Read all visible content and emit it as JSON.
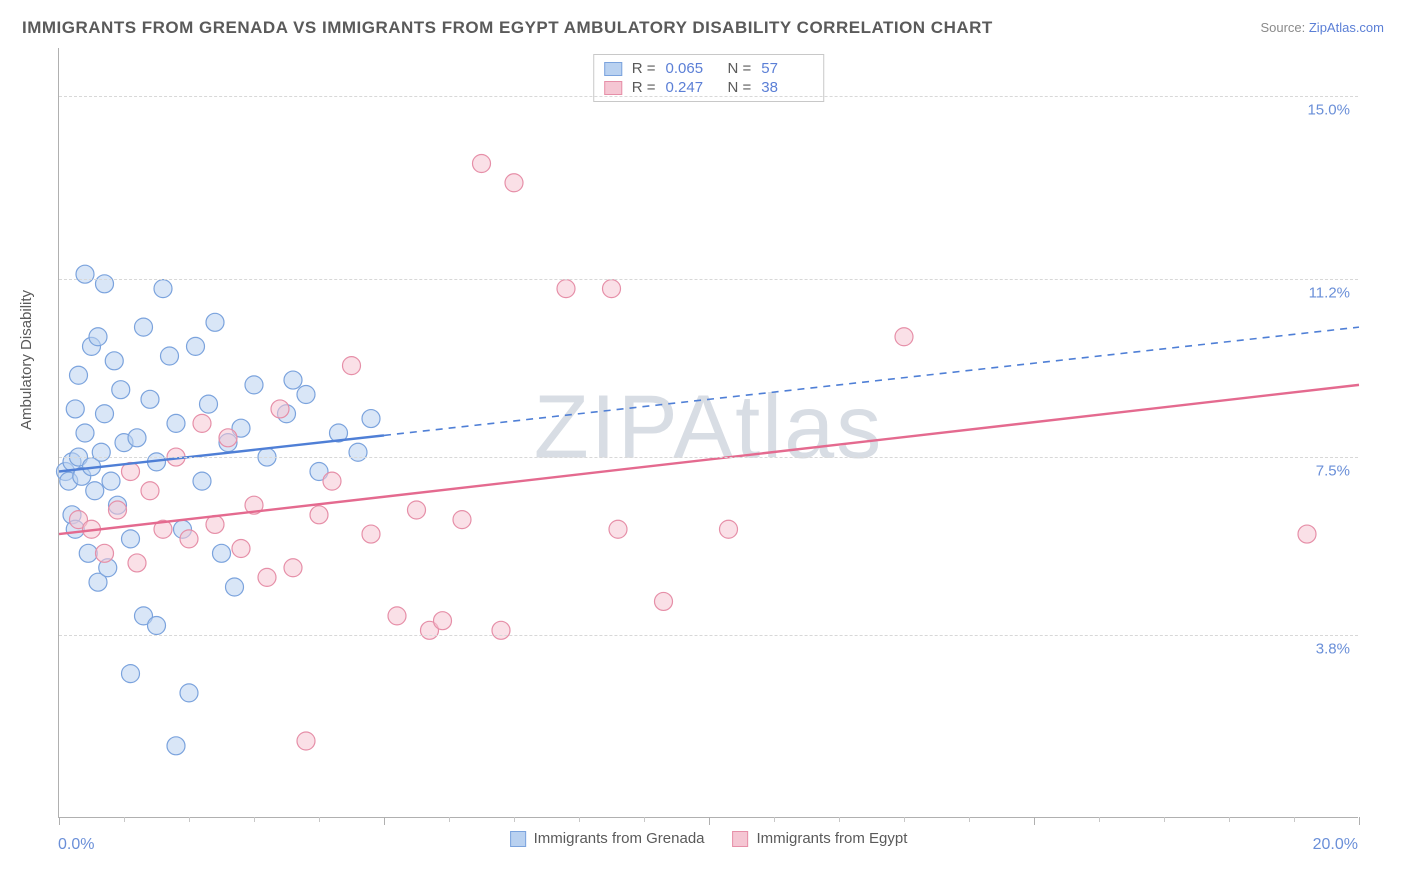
{
  "title": "IMMIGRANTS FROM GRENADA VS IMMIGRANTS FROM EGYPT AMBULATORY DISABILITY CORRELATION CHART",
  "source_prefix": "Source: ",
  "source_link": "ZipAtlas.com",
  "ylabel": "Ambulatory Disability",
  "watermark": "ZIPAtlas",
  "chart": {
    "type": "scatter",
    "xlim": [
      0,
      20
    ],
    "ylim": [
      0,
      16
    ],
    "x_ticks_major": [
      0,
      5,
      10,
      15,
      20
    ],
    "x_ticks_minor": [
      1,
      2,
      3,
      4,
      6,
      7,
      8,
      9,
      11,
      12,
      13,
      14,
      16,
      17,
      18,
      19
    ],
    "y_gridlines": [
      3.8,
      7.5,
      11.2,
      15.0
    ],
    "y_tick_labels": [
      "3.8%",
      "7.5%",
      "11.2%",
      "15.0%"
    ],
    "xlim_labels": [
      "0.0%",
      "20.0%"
    ],
    "background_color": "#ffffff",
    "grid_color": "#d8d8d8",
    "axis_color": "#b0b0b0",
    "marker_radius": 9,
    "marker_stroke_width": 1.2,
    "line_width": 2.4
  },
  "series": [
    {
      "name": "Immigrants from Grenada",
      "fill": "#b9d1f0",
      "stroke": "#7ba3dd",
      "fill_opacity": 0.55,
      "R": "0.065",
      "N": "57",
      "trend": {
        "x1": 0,
        "y1": 7.2,
        "x2": 20,
        "y2": 10.2,
        "solid_until_x": 5.0,
        "color": "#4f7fd6"
      },
      "points": [
        [
          0.1,
          7.2
        ],
        [
          0.15,
          7.0
        ],
        [
          0.2,
          7.4
        ],
        [
          0.2,
          6.3
        ],
        [
          0.25,
          8.5
        ],
        [
          0.25,
          6.0
        ],
        [
          0.3,
          9.2
        ],
        [
          0.3,
          7.5
        ],
        [
          0.35,
          7.1
        ],
        [
          0.4,
          11.3
        ],
        [
          0.4,
          8.0
        ],
        [
          0.45,
          5.5
        ],
        [
          0.5,
          9.8
        ],
        [
          0.5,
          7.3
        ],
        [
          0.55,
          6.8
        ],
        [
          0.6,
          10.0
        ],
        [
          0.6,
          4.9
        ],
        [
          0.65,
          7.6
        ],
        [
          0.7,
          8.4
        ],
        [
          0.7,
          11.1
        ],
        [
          0.75,
          5.2
        ],
        [
          0.8,
          7.0
        ],
        [
          0.85,
          9.5
        ],
        [
          0.9,
          6.5
        ],
        [
          0.95,
          8.9
        ],
        [
          1.0,
          7.8
        ],
        [
          1.1,
          5.8
        ],
        [
          1.1,
          3.0
        ],
        [
          1.2,
          7.9
        ],
        [
          1.3,
          10.2
        ],
        [
          1.3,
          4.2
        ],
        [
          1.4,
          8.7
        ],
        [
          1.5,
          7.4
        ],
        [
          1.5,
          4.0
        ],
        [
          1.6,
          11.0
        ],
        [
          1.7,
          9.6
        ],
        [
          1.8,
          8.2
        ],
        [
          1.8,
          1.5
        ],
        [
          1.9,
          6.0
        ],
        [
          2.0,
          2.6
        ],
        [
          2.1,
          9.8
        ],
        [
          2.2,
          7.0
        ],
        [
          2.3,
          8.6
        ],
        [
          2.4,
          10.3
        ],
        [
          2.5,
          5.5
        ],
        [
          2.6,
          7.8
        ],
        [
          2.7,
          4.8
        ],
        [
          2.8,
          8.1
        ],
        [
          3.0,
          9.0
        ],
        [
          3.2,
          7.5
        ],
        [
          3.5,
          8.4
        ],
        [
          3.6,
          9.1
        ],
        [
          3.8,
          8.8
        ],
        [
          4.0,
          7.2
        ],
        [
          4.3,
          8.0
        ],
        [
          4.6,
          7.6
        ],
        [
          4.8,
          8.3
        ]
      ]
    },
    {
      "name": "Immigrants from Egypt",
      "fill": "#f5c6d3",
      "stroke": "#e68fa8",
      "fill_opacity": 0.55,
      "R": "0.247",
      "N": "38",
      "trend": {
        "x1": 0,
        "y1": 5.9,
        "x2": 20,
        "y2": 9.0,
        "solid_until_x": 20,
        "color": "#e46a8f"
      },
      "points": [
        [
          0.3,
          6.2
        ],
        [
          0.5,
          6.0
        ],
        [
          0.7,
          5.5
        ],
        [
          0.9,
          6.4
        ],
        [
          1.1,
          7.2
        ],
        [
          1.2,
          5.3
        ],
        [
          1.4,
          6.8
        ],
        [
          1.6,
          6.0
        ],
        [
          1.8,
          7.5
        ],
        [
          2.0,
          5.8
        ],
        [
          2.2,
          8.2
        ],
        [
          2.4,
          6.1
        ],
        [
          2.6,
          7.9
        ],
        [
          2.8,
          5.6
        ],
        [
          3.0,
          6.5
        ],
        [
          3.2,
          5.0
        ],
        [
          3.4,
          8.5
        ],
        [
          3.6,
          5.2
        ],
        [
          3.8,
          1.6
        ],
        [
          4.0,
          6.3
        ],
        [
          4.2,
          7.0
        ],
        [
          4.5,
          9.4
        ],
        [
          4.8,
          5.9
        ],
        [
          5.2,
          4.2
        ],
        [
          5.5,
          6.4
        ],
        [
          5.7,
          3.9
        ],
        [
          5.9,
          4.1
        ],
        [
          6.2,
          6.2
        ],
        [
          6.5,
          13.6
        ],
        [
          7.0,
          13.2
        ],
        [
          7.8,
          11.0
        ],
        [
          8.5,
          11.0
        ],
        [
          8.6,
          6.0
        ],
        [
          9.3,
          4.5
        ],
        [
          10.3,
          6.0
        ],
        [
          13.0,
          10.0
        ],
        [
          19.2,
          5.9
        ],
        [
          6.8,
          3.9
        ]
      ]
    }
  ],
  "stat_legend": {
    "R_label": "R =",
    "N_label": "N ="
  }
}
